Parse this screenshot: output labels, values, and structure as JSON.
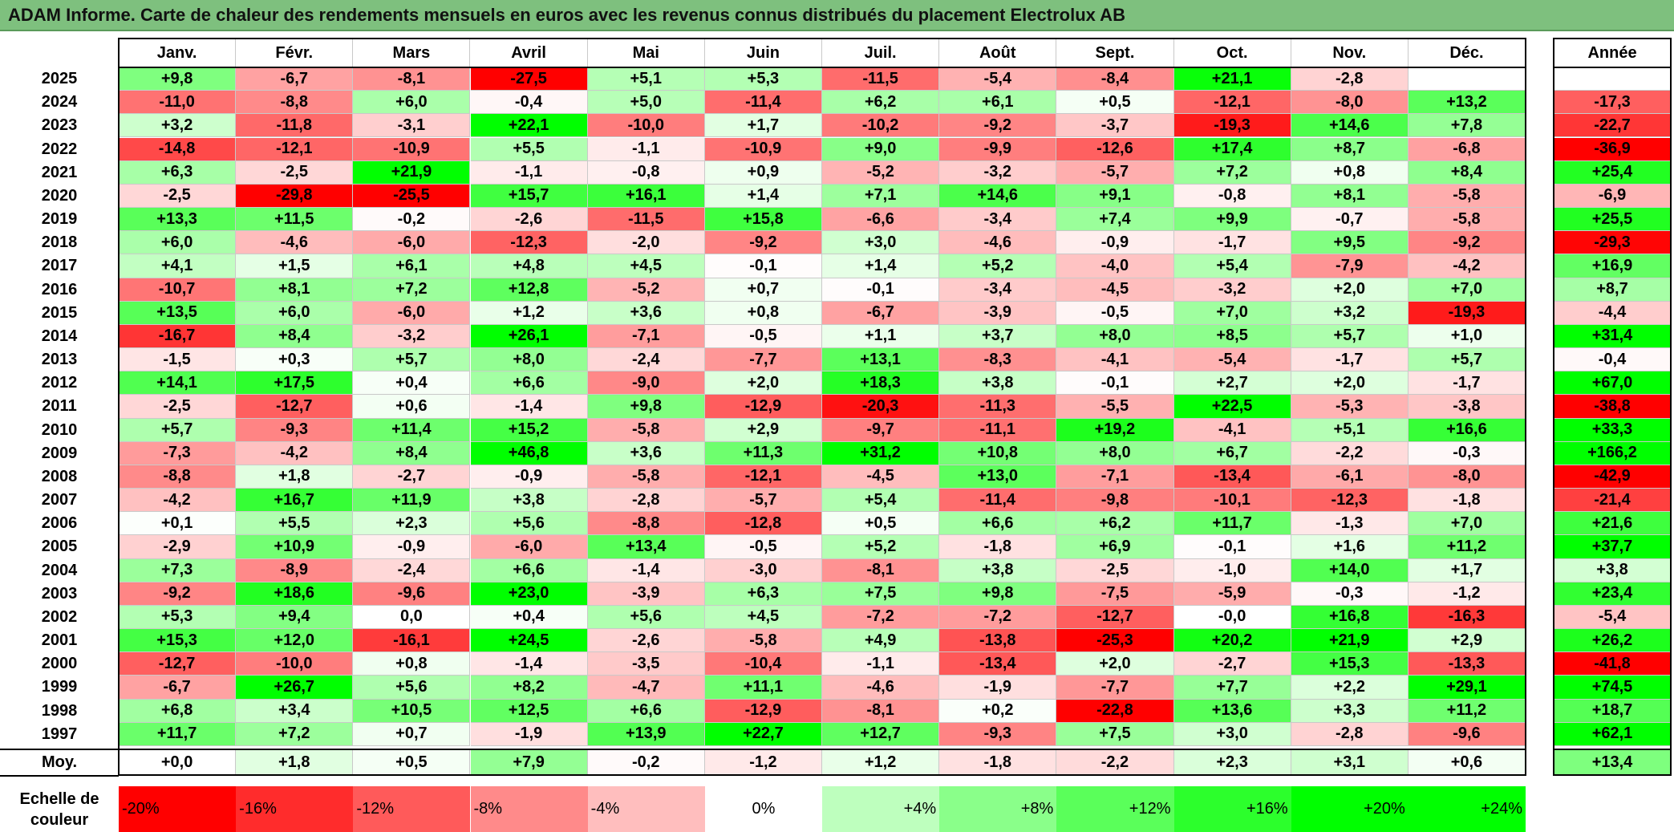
{
  "title": "ADAM Informe. Carte de chaleur des rendements mensuels en euros avec les revenus connus distribués du placement Electrolux AB",
  "colors": {
    "negative_max": "#ff0000",
    "neutral": "#ffffff",
    "positive_max": "#00ff00",
    "title_bg": "#7ec07e"
  },
  "chart_data": {
    "type": "heatmap",
    "title": "ADAM Informe. Carte de chaleur des rendements mensuels en euros avec les revenus connus distribués du placement Electrolux AB",
    "months": [
      "Janv.",
      "Févr.",
      "Mars",
      "Avril",
      "Mai",
      "Juin",
      "Juil.",
      "Août",
      "Sept.",
      "Oct.",
      "Nov.",
      "Déc."
    ],
    "year_header": "Année",
    "rows": [
      {
        "year": "2025",
        "values": [
          "+9,8",
          "-6,7",
          "-8,1",
          "-27,5",
          "+5,1",
          "+5,3",
          "-11,5",
          "-5,4",
          "-8,4",
          "+21,1",
          "-2,8",
          ""
        ],
        "annual": ""
      },
      {
        "year": "2024",
        "values": [
          "-11,0",
          "-8,8",
          "+6,0",
          "-0,4",
          "+5,0",
          "-11,4",
          "+6,2",
          "+6,1",
          "+0,5",
          "-12,1",
          "-8,0",
          "+13,2"
        ],
        "annual": "-17,3"
      },
      {
        "year": "2023",
        "values": [
          "+3,2",
          "-11,8",
          "-3,1",
          "+22,1",
          "-10,0",
          "+1,7",
          "-10,2",
          "-9,2",
          "-3,7",
          "-19,3",
          "+14,6",
          "+7,8"
        ],
        "annual": "-22,7"
      },
      {
        "year": "2022",
        "values": [
          "-14,8",
          "-12,1",
          "-10,9",
          "+5,5",
          "-1,1",
          "-10,9",
          "+9,0",
          "-9,9",
          "-12,6",
          "+17,4",
          "+8,7",
          "-6,8"
        ],
        "annual": "-36,9"
      },
      {
        "year": "2021",
        "values": [
          "+6,3",
          "-2,5",
          "+21,9",
          "-1,1",
          "-0,8",
          "+0,9",
          "-5,2",
          "-3,2",
          "-5,7",
          "+7,2",
          "+0,8",
          "+8,4"
        ],
        "annual": "+25,4"
      },
      {
        "year": "2020",
        "values": [
          "-2,5",
          "-29,8",
          "-25,5",
          "+15,7",
          "+16,1",
          "+1,4",
          "+7,1",
          "+14,6",
          "+9,1",
          "-0,8",
          "+8,1",
          "-5,8"
        ],
        "annual": "-6,9"
      },
      {
        "year": "2019",
        "values": [
          "+13,3",
          "+11,5",
          "-0,2",
          "-2,6",
          "-11,5",
          "+15,8",
          "-6,6",
          "-3,4",
          "+7,4",
          "+9,9",
          "-0,7",
          "-5,8"
        ],
        "annual": "+25,5"
      },
      {
        "year": "2018",
        "values": [
          "+6,0",
          "-4,6",
          "-6,0",
          "-12,3",
          "-2,0",
          "-9,2",
          "+3,0",
          "-4,6",
          "-0,9",
          "-1,7",
          "+9,5",
          "-9,2"
        ],
        "annual": "-29,3"
      },
      {
        "year": "2017",
        "values": [
          "+4,1",
          "+1,5",
          "+6,1",
          "+4,8",
          "+4,5",
          "-0,1",
          "+1,4",
          "+5,2",
          "-4,0",
          "+5,4",
          "-7,9",
          "-4,2"
        ],
        "annual": "+16,9"
      },
      {
        "year": "2016",
        "values": [
          "-10,7",
          "+8,1",
          "+7,2",
          "+12,8",
          "-5,2",
          "+0,7",
          "-0,1",
          "-3,4",
          "-4,5",
          "-3,2",
          "+2,0",
          "+7,0"
        ],
        "annual": "+8,7"
      },
      {
        "year": "2015",
        "values": [
          "+13,5",
          "+6,0",
          "-6,0",
          "+1,2",
          "+3,6",
          "+0,8",
          "-6,7",
          "-3,9",
          "-0,5",
          "+7,0",
          "+3,2",
          "-19,3"
        ],
        "annual": "-4,4"
      },
      {
        "year": "2014",
        "values": [
          "-16,7",
          "+8,4",
          "-3,2",
          "+26,1",
          "-7,1",
          "-0,5",
          "+1,1",
          "+3,7",
          "+8,0",
          "+8,5",
          "+5,7",
          "+1,0"
        ],
        "annual": "+31,4"
      },
      {
        "year": "2013",
        "values": [
          "-1,5",
          "+0,3",
          "+5,7",
          "+8,0",
          "-2,4",
          "-7,7",
          "+13,1",
          "-8,3",
          "-4,1",
          "-5,4",
          "-1,7",
          "+5,7"
        ],
        "annual": "-0,4"
      },
      {
        "year": "2012",
        "values": [
          "+14,1",
          "+17,5",
          "+0,4",
          "+6,6",
          "-9,0",
          "+2,0",
          "+18,3",
          "+3,8",
          "-0,1",
          "+2,7",
          "+2,0",
          "-1,7"
        ],
        "annual": "+67,0"
      },
      {
        "year": "2011",
        "values": [
          "-2,5",
          "-12,7",
          "+0,6",
          "-1,4",
          "+9,8",
          "-12,9",
          "-20,3",
          "-11,3",
          "-5,5",
          "+22,5",
          "-5,3",
          "-3,8"
        ],
        "annual": "-38,8"
      },
      {
        "year": "2010",
        "values": [
          "+5,7",
          "-9,3",
          "+11,4",
          "+15,2",
          "-5,8",
          "+2,9",
          "-9,7",
          "-11,1",
          "+19,2",
          "-4,1",
          "+5,1",
          "+16,6"
        ],
        "annual": "+33,3"
      },
      {
        "year": "2009",
        "values": [
          "-7,3",
          "-4,2",
          "+8,4",
          "+46,8",
          "+3,6",
          "+11,3",
          "+31,2",
          "+10,8",
          "+8,0",
          "+6,7",
          "-2,2",
          "-0,3"
        ],
        "annual": "+166,2"
      },
      {
        "year": "2008",
        "values": [
          "-8,8",
          "+1,8",
          "-2,7",
          "-0,9",
          "-5,8",
          "-12,1",
          "-4,5",
          "+13,0",
          "-7,1",
          "-13,4",
          "-6,1",
          "-8,0"
        ],
        "annual": "-42,9"
      },
      {
        "year": "2007",
        "values": [
          "-4,2",
          "+16,7",
          "+11,9",
          "+3,8",
          "-2,8",
          "-5,7",
          "+5,4",
          "-11,4",
          "-9,8",
          "-10,1",
          "-12,3",
          "-1,8"
        ],
        "annual": "-21,4"
      },
      {
        "year": "2006",
        "values": [
          "+0,1",
          "+5,5",
          "+2,3",
          "+5,6",
          "-8,8",
          "-12,8",
          "+0,5",
          "+6,6",
          "+6,2",
          "+11,7",
          "-1,3",
          "+7,0"
        ],
        "annual": "+21,6"
      },
      {
        "year": "2005",
        "values": [
          "-2,9",
          "+10,9",
          "-0,9",
          "-6,0",
          "+13,4",
          "-0,5",
          "+5,2",
          "-1,8",
          "+6,9",
          "-0,1",
          "+1,6",
          "+11,2"
        ],
        "annual": "+37,7"
      },
      {
        "year": "2004",
        "values": [
          "+7,3",
          "-8,9",
          "-2,4",
          "+6,6",
          "-1,4",
          "-3,0",
          "-8,1",
          "+3,8",
          "-2,5",
          "-1,0",
          "+14,0",
          "+1,7"
        ],
        "annual": "+3,8"
      },
      {
        "year": "2003",
        "values": [
          "-9,2",
          "+18,6",
          "-9,6",
          "+23,0",
          "-3,9",
          "+6,3",
          "+7,5",
          "+9,8",
          "-7,5",
          "-5,9",
          "-0,3",
          "-1,2"
        ],
        "annual": "+23,4"
      },
      {
        "year": "2002",
        "values": [
          "+5,3",
          "+9,4",
          "0,0",
          "+0,4",
          "+5,6",
          "+4,5",
          "-7,2",
          "-7,2",
          "-12,7",
          "-0,0",
          "+16,8",
          "-16,3"
        ],
        "annual": "-5,4"
      },
      {
        "year": "2001",
        "values": [
          "+15,3",
          "+12,0",
          "-16,1",
          "+24,5",
          "-2,6",
          "-5,8",
          "+4,9",
          "-13,8",
          "-25,3",
          "+20,2",
          "+21,9",
          "+2,9"
        ],
        "annual": "+26,2"
      },
      {
        "year": "2000",
        "values": [
          "-12,7",
          "-10,0",
          "+0,8",
          "-1,4",
          "-3,5",
          "-10,4",
          "-1,1",
          "-13,4",
          "+2,0",
          "-2,7",
          "+15,3",
          "-13,3"
        ],
        "annual": "-41,8"
      },
      {
        "year": "1999",
        "values": [
          "-6,7",
          "+26,7",
          "+5,6",
          "+8,2",
          "-4,7",
          "+11,1",
          "-4,6",
          "-1,9",
          "-7,7",
          "+7,7",
          "+2,2",
          "+29,1"
        ],
        "annual": "+74,5"
      },
      {
        "year": "1998",
        "values": [
          "+6,8",
          "+3,4",
          "+10,5",
          "+12,5",
          "+6,6",
          "-12,9",
          "-8,1",
          "+0,2",
          "-22,8",
          "+13,6",
          "+3,3",
          "+11,2"
        ],
        "annual": "+18,7"
      },
      {
        "year": "1997",
        "values": [
          "+11,7",
          "+7,2",
          "+0,7",
          "-1,9",
          "+13,9",
          "+22,7",
          "+12,7",
          "-9,3",
          "+7,5",
          "+3,0",
          "-2,8",
          "-9,6"
        ],
        "annual": "+62,1"
      }
    ],
    "average": {
      "label": "Moy.",
      "values": [
        "+0,0",
        "+1,8",
        "+0,5",
        "+7,9",
        "-0,2",
        "-1,2",
        "+1,2",
        "-1,8",
        "-2,2",
        "+2,3",
        "+3,1",
        "+0,6"
      ],
      "annual": "+13,4"
    },
    "scale": {
      "label": "Echelle de\ncouleur",
      "steps": [
        "-20%",
        "-16%",
        "-12%",
        "-8%",
        "-4%",
        "0%",
        "+4%",
        "+8%",
        "+12%",
        "+16%",
        "+20%",
        "+24%"
      ]
    }
  }
}
